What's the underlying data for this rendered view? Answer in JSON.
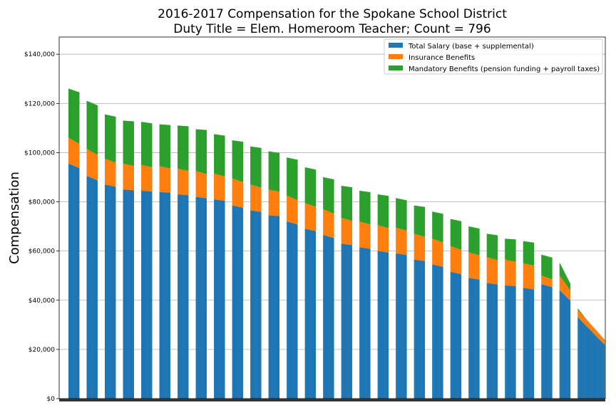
{
  "chart_data": {
    "type": "bar",
    "stacked": true,
    "title_lines": [
      "2016-2017 Compensation for the Spokane School District",
      "Duty Title = Elem. Homeroom Teacher; Count = 796"
    ],
    "xlabel": "",
    "ylabel": "Compensation",
    "ylim": [
      0,
      147000
    ],
    "y_ticks": [
      0,
      20000,
      40000,
      60000,
      80000,
      100000,
      120000,
      140000
    ],
    "y_tick_labels": [
      "$0",
      "$20,000",
      "$40,000",
      "$60,000",
      "$80,000",
      "$100,000",
      "$120,000",
      "$140,000"
    ],
    "grid": true,
    "legend_position": "top-right",
    "count": 796,
    "colors": {
      "salary": "#1f77b4",
      "insurance": "#ff7f0e",
      "mandatory": "#2ca02c"
    },
    "series": [
      {
        "name": "Total Salary (base + supplemental)",
        "key": "salary"
      },
      {
        "name": "Insurance Benefits",
        "key": "insurance"
      },
      {
        "name": "Mandatory Benefits (pension funding + payroll taxes)",
        "key": "mandatory"
      }
    ],
    "groups_approx": [
      {
        "salary": [
          95500,
          92500
        ],
        "insurance": [
          10500,
          9500
        ],
        "total": [
          126000,
          123500
        ]
      },
      {
        "salary": [
          90500,
          87500
        ],
        "insurance": [
          11000,
          10000
        ],
        "total": [
          121000,
          118000
        ]
      },
      {
        "salary": [
          87000,
          85500
        ],
        "insurance": [
          10500,
          9500
        ],
        "total": [
          115500,
          114000
        ]
      },
      {
        "salary": [
          85000,
          84500
        ],
        "insurance": [
          10500,
          9500
        ],
        "total": [
          113000,
          112500
        ]
      },
      {
        "salary": [
          84500,
          84000
        ],
        "insurance": [
          10500,
          9500
        ],
        "total": [
          112500,
          111500
        ]
      },
      {
        "salary": [
          84000,
          83500
        ],
        "insurance": [
          10500,
          9500
        ],
        "total": [
          111500,
          111000
        ]
      },
      {
        "salary": [
          83000,
          82500
        ],
        "insurance": [
          10500,
          9500
        ],
        "total": [
          111000,
          110500
        ]
      },
      {
        "salary": [
          82000,
          81000
        ],
        "insurance": [
          10500,
          9500
        ],
        "total": [
          109500,
          109000
        ]
      },
      {
        "salary": [
          81000,
          80000
        ],
        "insurance": [
          10500,
          9500
        ],
        "total": [
          107500,
          106500
        ]
      },
      {
        "salary": [
          78500,
          77000
        ],
        "insurance": [
          11000,
          10000
        ],
        "total": [
          105000,
          104000
        ]
      },
      {
        "salary": [
          76500,
          75500
        ],
        "insurance": [
          10500,
          9500
        ],
        "total": [
          102500,
          101500
        ]
      },
      {
        "salary": [
          74500,
          74000
        ],
        "insurance": [
          10500,
          9500
        ],
        "total": [
          100500,
          99500
        ]
      },
      {
        "salary": [
          72000,
          70000
        ],
        "insurance": [
          10500,
          9500
        ],
        "total": [
          98000,
          96500
        ]
      },
      {
        "salary": [
          69000,
          67500
        ],
        "insurance": [
          10500,
          9500
        ],
        "total": [
          94000,
          92500
        ]
      },
      {
        "salary": [
          66500,
          64500
        ],
        "insurance": [
          10500,
          9500
        ],
        "total": [
          90000,
          88500
        ]
      },
      {
        "salary": [
          63000,
          62000
        ],
        "insurance": [
          10500,
          9500
        ],
        "total": [
          86500,
          85500
        ]
      },
      {
        "salary": [
          61500,
          60500
        ],
        "insurance": [
          10500,
          9500
        ],
        "total": [
          84500,
          83500
        ]
      },
      {
        "salary": [
          60000,
          59000
        ],
        "insurance": [
          10500,
          9500
        ],
        "total": [
          83000,
          82000
        ]
      },
      {
        "salary": [
          59000,
          58000
        ],
        "insurance": [
          10500,
          9500
        ],
        "total": [
          81500,
          80000
        ]
      },
      {
        "salary": [
          56500,
          55500
        ],
        "insurance": [
          10500,
          9500
        ],
        "total": [
          78500,
          77500
        ]
      },
      {
        "salary": [
          54500,
          53000
        ],
        "insurance": [
          10500,
          9500
        ],
        "total": [
          76000,
          74500
        ]
      },
      {
        "salary": [
          51500,
          50000
        ],
        "insurance": [
          10500,
          9500
        ],
        "total": [
          73000,
          71500
        ]
      },
      {
        "salary": [
          49000,
          48000
        ],
        "insurance": [
          10500,
          9500
        ],
        "total": [
          70000,
          68500
        ]
      },
      {
        "salary": [
          47000,
          46000
        ],
        "insurance": [
          10500,
          9500
        ],
        "total": [
          67000,
          66000
        ]
      },
      {
        "salary": [
          46000,
          45500
        ],
        "insurance": [
          10500,
          9500
        ],
        "total": [
          65000,
          64500
        ]
      },
      {
        "salary": [
          45000,
          44000
        ],
        "insurance": [
          10000,
          9500
        ],
        "total": [
          64000,
          63000
        ]
      },
      {
        "salary": [
          46500,
          44500
        ],
        "insurance": [
          3500,
          3000
        ],
        "total": [
          58500,
          56500
        ]
      },
      {
        "salary": [
          44000,
          37000
        ],
        "insurance": [
          6000,
          3000
        ],
        "total": [
          55000,
          41000
        ]
      },
      {
        "salary": [
          33000,
          22000
        ],
        "insurance": [
          3000,
          2000
        ],
        "total": [
          36500,
          23000
        ]
      }
    ]
  }
}
